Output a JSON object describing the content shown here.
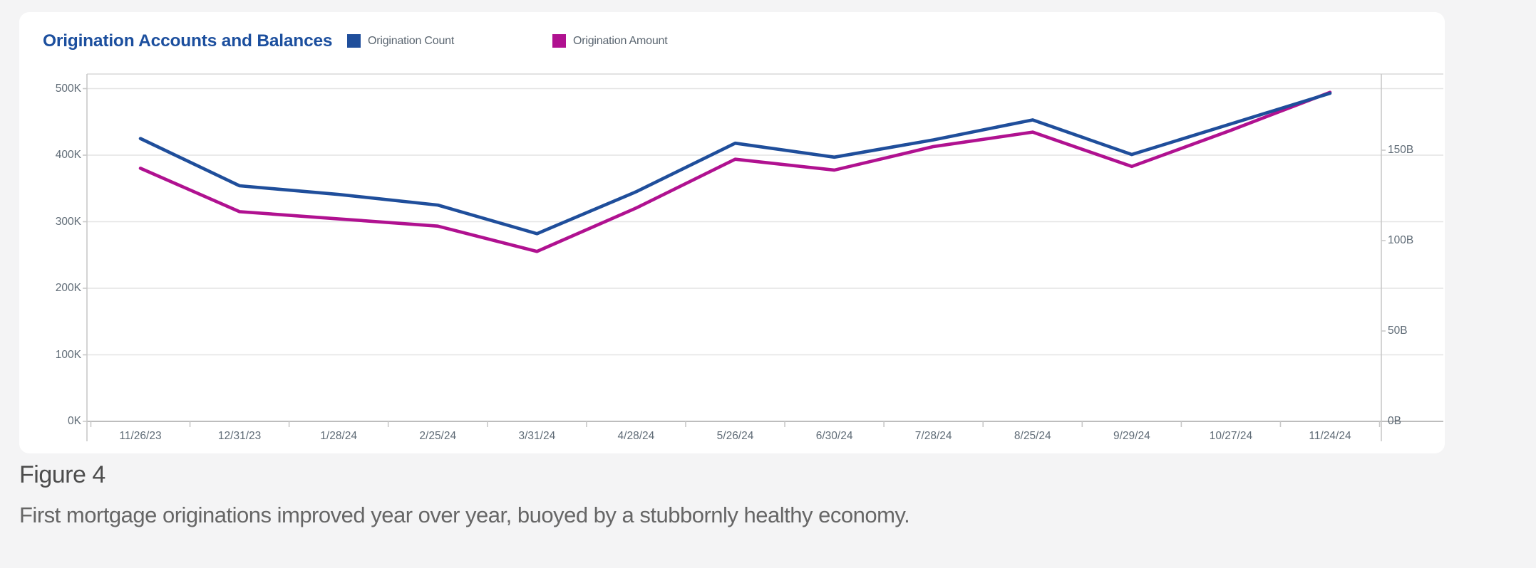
{
  "header": {
    "title": "Origination Accounts and Balances",
    "title_color": "#1c4f9e"
  },
  "legend": {
    "items": [
      {
        "label": "Origination Count",
        "color": "#1F4E9B"
      },
      {
        "label": "Origination Amount",
        "color": "#B01190"
      }
    ]
  },
  "figure": {
    "label": "Figure 4",
    "caption": "First mortgage originations improved year over year, buoyed by a stubbornly healthy economy."
  },
  "chart_data": {
    "type": "line",
    "title": "Origination Accounts and Balances",
    "categories": [
      "11/26/23",
      "12/31/23",
      "1/28/24",
      "2/25/24",
      "3/31/24",
      "4/28/24",
      "5/26/24",
      "6/30/24",
      "7/28/24",
      "8/25/24",
      "9/29/24",
      "10/27/24",
      "11/24/24"
    ],
    "series": [
      {
        "name": "Origination Count",
        "axis": "left",
        "color": "#1F4E9B",
        "unit": "K accounts",
        "values": [
          425,
          354,
          341,
          325,
          282,
          345,
          418,
          397,
          423,
          453,
          401,
          447,
          493
        ]
      },
      {
        "name": "Origination Amount",
        "axis": "right",
        "color": "#B01190",
        "unit": "B dollars",
        "values": [
          140,
          116,
          112,
          108,
          94,
          118,
          145,
          139,
          152,
          160,
          141,
          161,
          182
        ]
      }
    ],
    "left_axis": {
      "tick_labels": [
        "0K",
        "100K",
        "200K",
        "300K",
        "400K",
        "500K"
      ],
      "range": [
        0,
        522
      ],
      "unit": "K"
    },
    "right_axis": {
      "tick_labels": [
        "0B",
        "50B",
        "100B",
        "150B"
      ],
      "range": [
        0,
        192
      ],
      "unit": "B"
    },
    "grid": true,
    "legend_position": "top"
  }
}
